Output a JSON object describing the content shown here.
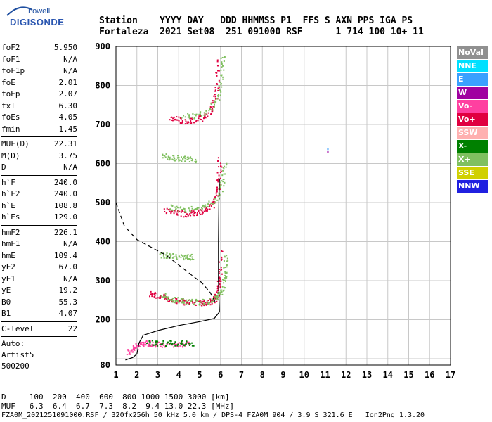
{
  "logo": {
    "top": "Lowell",
    "bottom": "DIGISONDE"
  },
  "header": {
    "line1": "Station    YYYY DAY   DDD HHMMSS P1  FFS S AXN PPS IGA PS",
    "line2": "Fortaleza  2021 Set08  251 091000 RSF      1 714 100 10+ 11"
  },
  "params": {
    "group1": [
      {
        "k": "foF2",
        "v": "5.950"
      },
      {
        "k": "foF1",
        "v": "N/A"
      },
      {
        "k": "foF1p",
        "v": "N/A"
      },
      {
        "k": "foE",
        "v": "2.01"
      },
      {
        "k": "foEp",
        "v": "2.07"
      },
      {
        "k": "fxI",
        "v": "6.30"
      },
      {
        "k": "foEs",
        "v": "4.05"
      },
      {
        "k": "fmin",
        "v": "1.45"
      }
    ],
    "group2": [
      {
        "k": "MUF(D)",
        "v": "22.31"
      },
      {
        "k": "M(D)",
        "v": "3.75"
      },
      {
        "k": "D",
        "v": "N/A"
      }
    ],
    "group3": [
      {
        "k": "h`F",
        "v": "240.0"
      },
      {
        "k": "h`F2",
        "v": "240.0"
      },
      {
        "k": "h`E",
        "v": "108.8"
      },
      {
        "k": "h`Es",
        "v": "129.0"
      }
    ],
    "group4": [
      {
        "k": "hmF2",
        "v": "226.1"
      },
      {
        "k": "hmF1",
        "v": "N/A"
      },
      {
        "k": "hmE",
        "v": "109.4"
      },
      {
        "k": "yF2",
        "v": "67.0"
      },
      {
        "k": "yF1",
        "v": "N/A"
      },
      {
        "k": "yE",
        "v": "19.2"
      },
      {
        "k": "B0",
        "v": "55.3"
      },
      {
        "k": "B1",
        "v": "4.07"
      }
    ],
    "group5": [
      {
        "k": "C-level",
        "v": "22"
      }
    ],
    "auto": [
      "Auto:",
      "Artist5",
      "500200"
    ]
  },
  "legend": [
    {
      "label": "NoVal",
      "color": "#909090"
    },
    {
      "label": "NNE",
      "color": "#00e0ff"
    },
    {
      "label": "E",
      "color": "#3aa0ff"
    },
    {
      "label": "W",
      "color": "#a000a0"
    },
    {
      "label": "Vo-",
      "color": "#ff40a0"
    },
    {
      "label": "Vo+",
      "color": "#e00040"
    },
    {
      "label": "SSW",
      "color": "#ffb0b0"
    },
    {
      "label": "X-",
      "color": "#008000"
    },
    {
      "label": "X+",
      "color": "#80c060"
    },
    {
      "label": "SSE",
      "color": "#d0d000"
    },
    {
      "label": "NNW",
      "color": "#2020e0"
    }
  ],
  "footer": {
    "line1": "D     100  200  400  600  800 1000 1500 3000 [km]",
    "line2": "MUF   6.3  6.4  6.7  7.3  8.2  9.4 13.0 22.3 [MHz]",
    "line3": "FZA0M_2021251091000.RSF / 320fx256h 50 kHz 5.0 km / DPS-4 FZA0M 904 / 3.9 S 321.6 E   Ion2Png 1.3.20"
  },
  "chart_data": {
    "type": "scatter",
    "xlim": [
      1,
      17
    ],
    "ylim": [
      80,
      900
    ],
    "x_ticks": [
      1,
      2,
      3,
      4,
      5,
      6,
      7,
      8,
      9,
      10,
      11,
      12,
      13,
      14,
      15,
      16,
      17
    ],
    "y_ticks": [
      80,
      100,
      200,
      300,
      400,
      500,
      600,
      700,
      800,
      900
    ],
    "y_tick_labels": [
      "80",
      "",
      "200",
      "300",
      "400",
      "500",
      "600",
      "700",
      "800",
      "900"
    ],
    "grid": true,
    "traces": [
      {
        "name": "F2 O trace",
        "color": "#e00040",
        "points": [
          [
            2.6,
            268
          ],
          [
            3.0,
            262
          ],
          [
            3.4,
            255
          ],
          [
            3.8,
            250
          ],
          [
            4.2,
            246
          ],
          [
            4.6,
            244
          ],
          [
            5.0,
            243
          ],
          [
            5.3,
            244
          ],
          [
            5.6,
            250
          ],
          [
            5.8,
            262
          ],
          [
            5.9,
            285
          ],
          [
            5.95,
            320
          ],
          [
            5.97,
            380
          ]
        ]
      },
      {
        "name": "F2 X trace",
        "color": "#80c060",
        "points": [
          [
            3.2,
            262
          ],
          [
            3.6,
            255
          ],
          [
            4.0,
            250
          ],
          [
            4.5,
            247
          ],
          [
            5.0,
            246
          ],
          [
            5.5,
            250
          ],
          [
            5.9,
            262
          ],
          [
            6.1,
            285
          ],
          [
            6.2,
            320
          ],
          [
            6.25,
            370
          ]
        ]
      },
      {
        "name": "F2 2nd hop O",
        "color": "#e00040",
        "points": [
          [
            3.3,
            482
          ],
          [
            3.8,
            476
          ],
          [
            4.3,
            472
          ],
          [
            4.8,
            474
          ],
          [
            5.2,
            480
          ],
          [
            5.6,
            495
          ],
          [
            5.85,
            530
          ],
          [
            5.92,
            570
          ],
          [
            5.95,
            620
          ]
        ]
      },
      {
        "name": "F2 2nd hop X",
        "color": "#80c060",
        "points": [
          [
            3.6,
            490
          ],
          [
            4.1,
            484
          ],
          [
            4.7,
            484
          ],
          [
            5.3,
            492
          ],
          [
            5.9,
            520
          ],
          [
            6.1,
            560
          ],
          [
            6.2,
            610
          ]
        ]
      },
      {
        "name": "F2 3rd hop O",
        "color": "#e00040",
        "points": [
          [
            3.6,
            720
          ],
          [
            4.0,
            712
          ],
          [
            4.5,
            710
          ],
          [
            5.0,
            716
          ],
          [
            5.4,
            730
          ],
          [
            5.7,
            760
          ],
          [
            5.8,
            800
          ],
          [
            5.85,
            870
          ]
        ]
      },
      {
        "name": "F2 3rd hop X",
        "color": "#80c060",
        "points": [
          [
            4.2,
            726
          ],
          [
            4.8,
            722
          ],
          [
            5.4,
            738
          ],
          [
            5.9,
            770
          ],
          [
            6.05,
            820
          ],
          [
            6.1,
            880
          ]
        ]
      },
      {
        "name": "E / Es",
        "color": "#ff40a0",
        "points": [
          [
            1.5,
            115
          ],
          [
            1.8,
            125
          ],
          [
            2.0,
            135
          ],
          [
            2.3,
            140
          ],
          [
            2.6,
            140
          ],
          [
            3.0,
            138
          ],
          [
            3.5,
            138
          ],
          [
            4.0,
            138
          ],
          [
            4.5,
            138
          ]
        ]
      },
      {
        "name": "Es X",
        "color": "#008000",
        "points": [
          [
            2.5,
            142
          ],
          [
            3.0,
            141
          ],
          [
            3.6,
            141
          ],
          [
            4.2,
            141
          ],
          [
            4.7,
            141
          ]
        ]
      },
      {
        "name": "Es 2nd",
        "color": "#80c060",
        "points": [
          [
            3.1,
            368
          ],
          [
            3.5,
            364
          ],
          [
            4.0,
            363
          ],
          [
            4.4,
            362
          ],
          [
            4.6,
            362
          ]
        ]
      },
      {
        "name": "F 2nd scatter",
        "color": "#80c060",
        "points": [
          [
            3.2,
            620
          ],
          [
            3.6,
            618
          ],
          [
            4.0,
            615
          ],
          [
            4.4,
            612
          ],
          [
            4.8,
            610
          ]
        ]
      }
    ],
    "profile_solid": [
      [
        1.45,
        96
      ],
      [
        1.8,
        103
      ],
      [
        2.0,
        112
      ],
      [
        2.1,
        140
      ],
      [
        2.3,
        160
      ],
      [
        3.0,
        172
      ],
      [
        4.0,
        185
      ],
      [
        5.0,
        195
      ],
      [
        5.7,
        203
      ],
      [
        5.95,
        220
      ],
      [
        5.93,
        250
      ],
      [
        5.9,
        300
      ],
      [
        5.9,
        400
      ],
      [
        5.92,
        500
      ],
      [
        5.95,
        560
      ]
    ],
    "profile_dashed": [
      [
        1.0,
        500
      ],
      [
        1.4,
        440
      ],
      [
        2.0,
        405
      ],
      [
        2.7,
        385
      ],
      [
        3.4,
        365
      ],
      [
        4.0,
        340
      ],
      [
        4.6,
        315
      ],
      [
        5.1,
        295
      ],
      [
        5.5,
        270
      ],
      [
        5.8,
        240
      ]
    ],
    "isolated_points": [
      {
        "x": 11.1,
        "y": 640,
        "color": "#3aa0ff"
      },
      {
        "x": 11.1,
        "y": 632,
        "color": "#a000a0"
      }
    ]
  }
}
